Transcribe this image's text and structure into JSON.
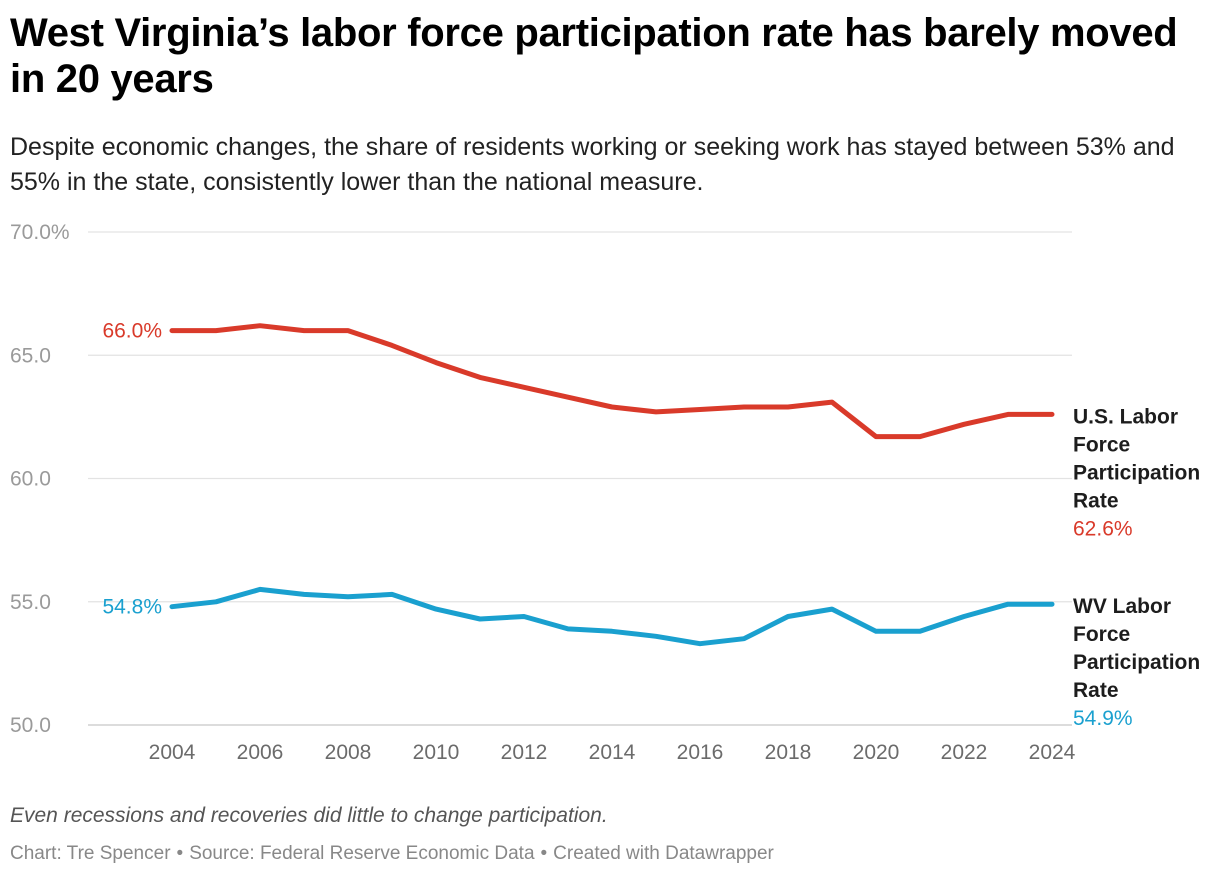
{
  "header": {
    "title": "West Virginia’s labor force participation rate has barely moved in 20 years",
    "subtitle": "Despite economic changes, the share of residents working or seeking work has stayed between 53% and 55% in the state, consistently lower than the national measure."
  },
  "footer": {
    "note": "Even recessions and recoveries did little to change participation.",
    "chart_by": "Chart: Tre Spencer",
    "source": "Source: Federal Reserve Economic Data",
    "created_with": "Created with Datawrapper",
    "separator": "•"
  },
  "colors": {
    "us": "#d93a2a",
    "wv": "#1aa0cf",
    "grid": "#e3e3e3",
    "axis_text": "#9a9a9a"
  },
  "chart_data": {
    "type": "line",
    "title": "West Virginia’s labor force participation rate has barely moved in 20 years",
    "xlabel": "",
    "ylabel": "",
    "ylim": [
      50,
      70
    ],
    "xlim": [
      2002,
      2024
    ],
    "grid": true,
    "y_ticks": [
      {
        "value": 70,
        "label": "70.0%"
      },
      {
        "value": 65,
        "label": "65.0"
      },
      {
        "value": 60,
        "label": "60.0"
      },
      {
        "value": 55,
        "label": "55.0"
      },
      {
        "value": 50,
        "label": "50.0"
      }
    ],
    "x_ticks": [
      {
        "value": 2004,
        "label": "2004"
      },
      {
        "value": 2006,
        "label": "2006"
      },
      {
        "value": 2008,
        "label": "2008"
      },
      {
        "value": 2010,
        "label": "2010"
      },
      {
        "value": 2012,
        "label": "2012"
      },
      {
        "value": 2014,
        "label": "2014"
      },
      {
        "value": 2016,
        "label": "2016"
      },
      {
        "value": 2018,
        "label": "2018"
      },
      {
        "value": 2020,
        "label": "2020"
      },
      {
        "value": 2022,
        "label": "2022"
      },
      {
        "value": 2024,
        "label": "2024"
      }
    ],
    "x": [
      2004,
      2005,
      2006,
      2007,
      2008,
      2009,
      2010,
      2011,
      2012,
      2013,
      2014,
      2015,
      2016,
      2017,
      2018,
      2019,
      2020,
      2021,
      2022,
      2023,
      2024
    ],
    "series": [
      {
        "id": "us",
        "name_lines": [
          "U.S. Labor",
          "Force",
          "Participation",
          "Rate"
        ],
        "color": "#d93a2a",
        "start_label": "66.0%",
        "end_label": "62.6%",
        "values": [
          66.0,
          66.0,
          66.2,
          66.0,
          66.0,
          65.4,
          64.7,
          64.1,
          63.7,
          63.3,
          62.9,
          62.7,
          62.8,
          62.9,
          62.9,
          63.1,
          61.7,
          61.7,
          62.2,
          62.6,
          62.6
        ]
      },
      {
        "id": "wv",
        "name_lines": [
          "WV Labor",
          "Force",
          "Participation",
          "Rate"
        ],
        "color": "#1aa0cf",
        "start_label": "54.8%",
        "end_label": "54.9%",
        "values": [
          54.8,
          55.0,
          55.5,
          55.3,
          55.2,
          55.3,
          54.7,
          54.3,
          54.4,
          53.9,
          53.8,
          53.6,
          53.3,
          53.5,
          54.4,
          54.7,
          53.8,
          53.8,
          54.4,
          54.9,
          54.9
        ]
      }
    ]
  }
}
